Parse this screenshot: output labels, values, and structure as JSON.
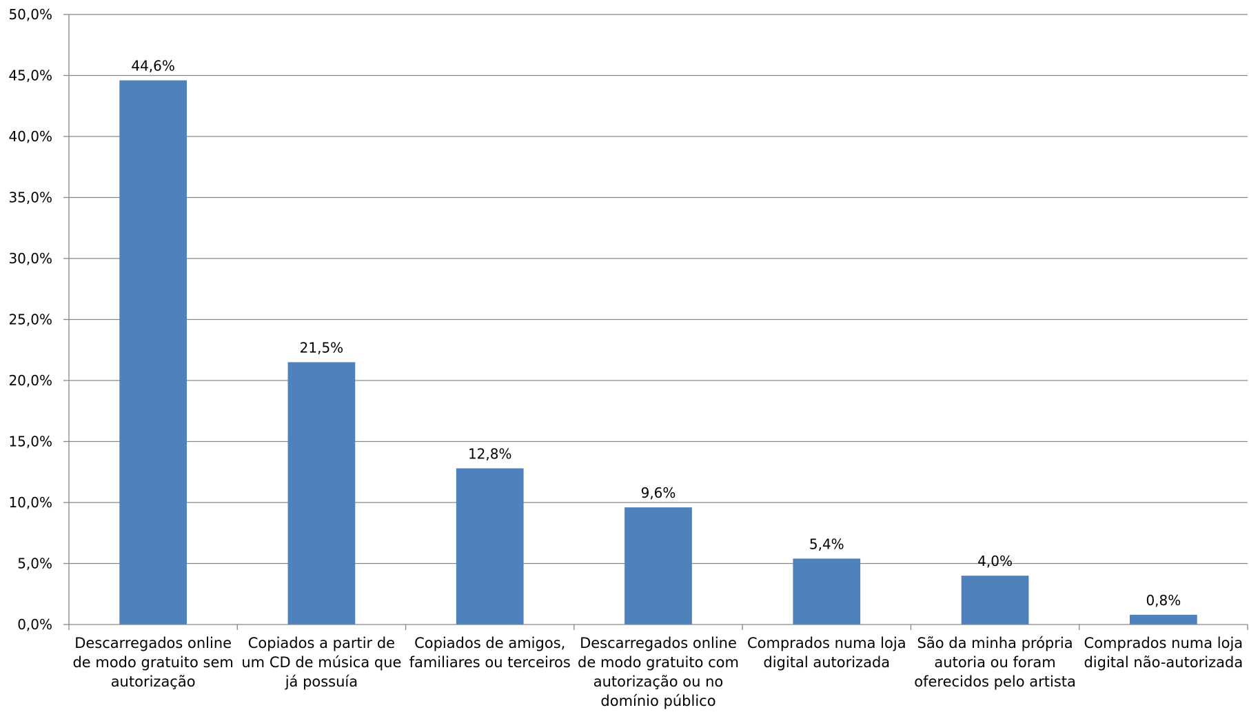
{
  "chart_data": {
    "type": "bar",
    "title": "",
    "xlabel": "",
    "ylabel": "",
    "ylim": [
      0,
      50
    ],
    "y_tick_step": 5,
    "y_tick_labels": [
      "0,0%",
      "5,0%",
      "10,0%",
      "15,0%",
      "20,0%",
      "25,0%",
      "30,0%",
      "35,0%",
      "40,0%",
      "45,0%",
      "50,0%"
    ],
    "grid": true,
    "legend": "none",
    "bar_color": "#4f81bd",
    "categories": [
      [
        "Descarregados online",
        "de modo gratuito sem",
        "autorização"
      ],
      [
        "Copiados a partir de",
        "um CD de música que",
        "já possuía"
      ],
      [
        "Copiados de amigos,",
        "familiares ou terceiros"
      ],
      [
        "Descarregados online",
        "de modo gratuito com",
        "autorização ou no",
        "domínio público"
      ],
      [
        "Comprados numa loja",
        "digital autorizada"
      ],
      [
        "São da minha própria",
        "autoria ou foram",
        "oferecidos pelo artista"
      ],
      [
        "Comprados numa loja",
        "digital não-autorizada"
      ]
    ],
    "values": [
      44.6,
      21.5,
      12.8,
      9.6,
      5.4,
      4.0,
      0.8
    ],
    "data_labels": [
      "44,6%",
      "21,5%",
      "12,8%",
      "9,6%",
      "5,4%",
      "4,0%",
      "0,8%"
    ]
  }
}
